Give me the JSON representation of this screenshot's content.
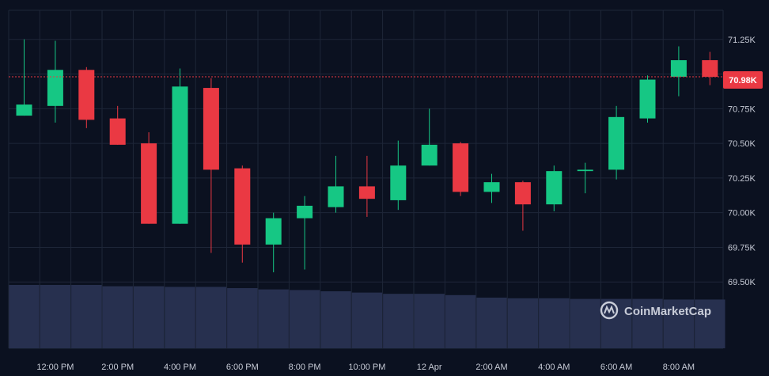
{
  "chart_data": {
    "type": "candlestick",
    "y_ticks": [
      69.5,
      69.75,
      70.0,
      70.25,
      70.5,
      70.75,
      71.25
    ],
    "y_tick_labels": [
      "69.50K",
      "69.75K",
      "70.00K",
      "70.25K",
      "70.50K",
      "70.75K",
      "71.25K"
    ],
    "ylim": [
      69.45,
      71.46
    ],
    "x_tick_labels": [
      "12:00 PM",
      "2:00 PM",
      "4:00 PM",
      "6:00 PM",
      "8:00 PM",
      "10:00 PM",
      "12 Apr",
      "2:00 AM",
      "4:00 AM",
      "6:00 AM",
      "8:00 AM"
    ],
    "current_price": 70.98,
    "current_price_label": "70.98K",
    "colors": {
      "up": "#16c784",
      "down": "#ea3943",
      "volume": "#27304f",
      "price_line": "#ea3943",
      "grid": "#1e2638"
    },
    "candles": [
      {
        "o": 70.7,
        "h": 71.25,
        "l": 70.7,
        "c": 70.78
      },
      {
        "o": 70.77,
        "h": 71.24,
        "l": 70.65,
        "c": 71.03
      },
      {
        "o": 71.03,
        "h": 71.05,
        "l": 70.61,
        "c": 70.67
      },
      {
        "o": 70.68,
        "h": 70.77,
        "l": 70.49,
        "c": 70.49
      },
      {
        "o": 70.5,
        "h": 70.58,
        "l": 69.92,
        "c": 69.92
      },
      {
        "o": 69.92,
        "h": 71.04,
        "l": 69.92,
        "c": 70.91
      },
      {
        "o": 70.9,
        "h": 70.97,
        "l": 69.71,
        "c": 70.31
      },
      {
        "o": 70.32,
        "h": 70.34,
        "l": 69.64,
        "c": 69.77
      },
      {
        "o": 69.77,
        "h": 70.0,
        "l": 69.57,
        "c": 69.96
      },
      {
        "o": 69.96,
        "h": 70.12,
        "l": 69.59,
        "c": 70.05
      },
      {
        "o": 70.04,
        "h": 70.41,
        "l": 70.0,
        "c": 70.19
      },
      {
        "o": 70.19,
        "h": 70.41,
        "l": 69.97,
        "c": 70.1
      },
      {
        "o": 70.09,
        "h": 70.52,
        "l": 70.02,
        "c": 70.34
      },
      {
        "o": 70.34,
        "h": 70.75,
        "l": 70.34,
        "c": 70.49
      },
      {
        "o": 70.5,
        "h": 70.51,
        "l": 70.12,
        "c": 70.15
      },
      {
        "o": 70.15,
        "h": 70.28,
        "l": 70.07,
        "c": 70.22
      },
      {
        "o": 70.22,
        "h": 70.23,
        "l": 69.87,
        "c": 70.06
      },
      {
        "o": 70.06,
        "h": 70.34,
        "l": 70.01,
        "c": 70.3
      },
      {
        "o": 70.3,
        "h": 70.36,
        "l": 70.14,
        "c": 70.31
      },
      {
        "o": 70.31,
        "h": 70.77,
        "l": 70.24,
        "c": 70.69
      },
      {
        "o": 70.68,
        "h": 70.99,
        "l": 70.65,
        "c": 70.96
      },
      {
        "o": 70.98,
        "h": 71.2,
        "l": 70.84,
        "c": 71.1
      },
      {
        "o": 71.1,
        "h": 71.16,
        "l": 70.92,
        "c": 70.98
      }
    ],
    "volumes": [
      1.0,
      1.0,
      1.0,
      0.98,
      0.98,
      0.97,
      0.97,
      0.95,
      0.93,
      0.92,
      0.9,
      0.88,
      0.86,
      0.86,
      0.84,
      0.8,
      0.79,
      0.79,
      0.78,
      0.78,
      0.78,
      0.77,
      0.77
    ]
  },
  "watermark": {
    "text": "CoinMarketCap",
    "icon": "coinmarketcap-logo-icon"
  }
}
